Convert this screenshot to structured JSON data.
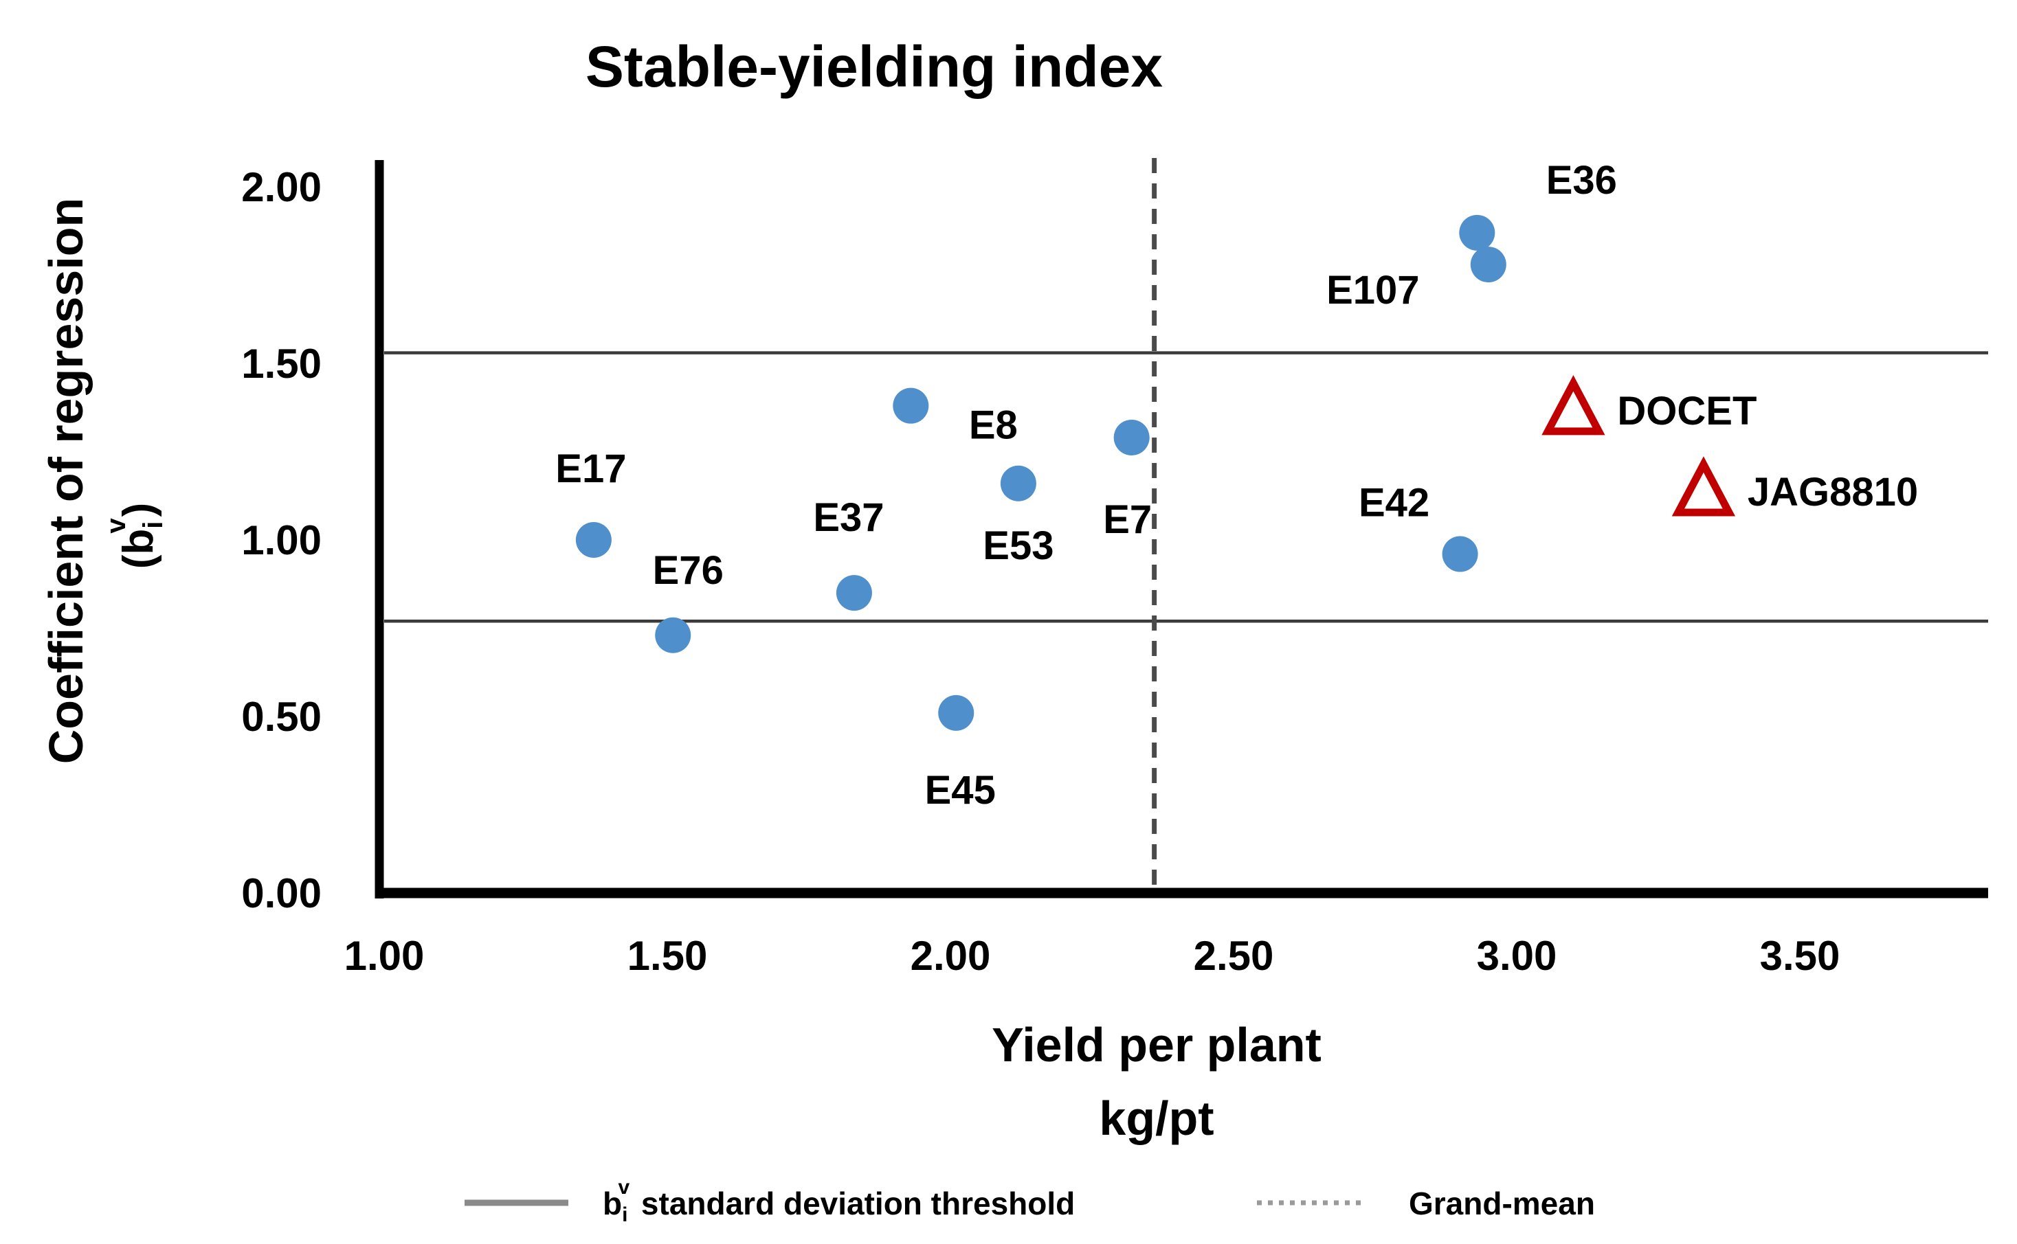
{
  "title": "Stable-yielding index",
  "y_axis": {
    "title": "Coefficient of regression",
    "unit": {
      "prefix": "(b",
      "sub": "i",
      "sup": "v",
      "suffix": ")"
    },
    "tick_labels": [
      "0.00",
      "0.50",
      "1.00",
      "1.50",
      "2.00"
    ]
  },
  "x_axis": {
    "title_line1": "Yield per plant",
    "title_line2": "kg/pt",
    "tick_labels": [
      "1.00",
      "1.50",
      "2.00",
      "2.50",
      "3.00",
      "3.50"
    ]
  },
  "legend": {
    "threshold": {
      "prefix": "b",
      "sub": "i",
      "sup": "v",
      "text": " standard deviation threshold"
    },
    "grand_mean": "Grand-mean"
  },
  "colors": {
    "genotype_point": "#4E8FCC",
    "check_marker": "#C00000",
    "threshold_line": "#3b3b3b",
    "grand_mean_line": "#4a4a4a",
    "axis_line": "#000000",
    "legend_solid_swatch": "#8a8a8a",
    "legend_dotted_swatch": "#9a9a9a",
    "text": "#000000"
  },
  "chart_data": {
    "type": "scatter",
    "title": "Stable-yielding index",
    "xlabel": "Yield per plant kg/pt",
    "ylabel": "Coefficient of regression (bi^v)",
    "xlim": [
      0.99,
      3.84
    ],
    "ylim": [
      0.0,
      2.08
    ],
    "x_ticks": [
      1.0,
      1.5,
      2.0,
      2.5,
      3.0,
      3.5
    ],
    "y_ticks": [
      0.0,
      0.5,
      1.0,
      1.5,
      2.0
    ],
    "grid": false,
    "threshold_upper": 1.53,
    "threshold_lower": 0.77,
    "grand_mean_x": 2.36,
    "legend_entries": [
      "bi^v standard deviation threshold",
      "Grand-mean"
    ],
    "series": [
      {
        "name": "genotypes",
        "marker": "circle",
        "points": [
          {
            "label": "E17",
            "x": 1.37,
            "y": 1.0,
            "label_dx": -4,
            "label_dy": -104
          },
          {
            "label": "E76",
            "x": 1.51,
            "y": 0.73,
            "label_dx": 22,
            "label_dy": -95
          },
          {
            "label": "E37",
            "x": 1.83,
            "y": 0.85,
            "label_dx": -8,
            "label_dy": -110
          },
          {
            "label": "E45",
            "x": 2.01,
            "y": 0.51,
            "label_dx": 6,
            "label_dy": 112
          },
          {
            "label": "E8",
            "x": 1.93,
            "y": 1.38,
            "label_dx": 120,
            "label_dy": 28
          },
          {
            "label": "E53",
            "x": 2.12,
            "y": 1.16,
            "label_dx": 0,
            "label_dy": 90
          },
          {
            "label": "E7",
            "x": 2.32,
            "y": 1.29,
            "label_dx": -6,
            "label_dy": 119
          },
          {
            "label": "E107",
            "x": 2.95,
            "y": 1.78,
            "label_dx": -168,
            "label_dy": 37
          },
          {
            "label": "E36",
            "x": 2.93,
            "y": 1.87,
            "label_dx": 152,
            "label_dy": -77
          },
          {
            "label": "E42",
            "x": 2.9,
            "y": 0.96,
            "label_dx": -96,
            "label_dy": -75
          }
        ]
      },
      {
        "name": "checks",
        "marker": "triangle-open",
        "points": [
          {
            "label": "DOCET",
            "x": 3.1,
            "y": 1.37,
            "label_dx": 64,
            "label_dy": 2
          },
          {
            "label": "JAG8810",
            "x": 3.33,
            "y": 1.14,
            "label_dx": 64,
            "label_dy": 2
          }
        ]
      }
    ]
  }
}
